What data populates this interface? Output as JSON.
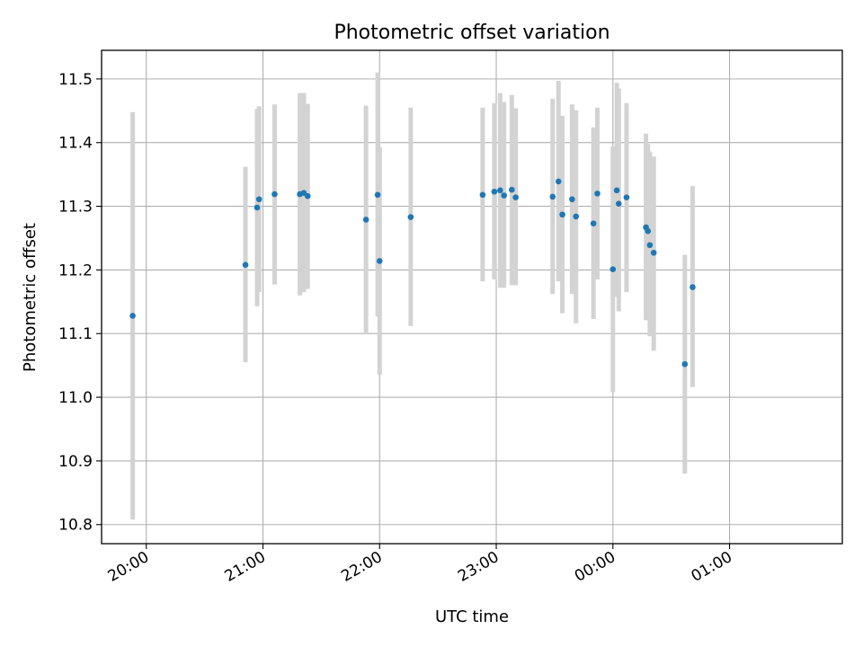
{
  "chart_data": {
    "type": "scatter",
    "title": "Photometric offset variation",
    "xlabel": "UTC time",
    "ylabel": "Photometric offset",
    "x_unit": "UTC time (HH:MM)",
    "xlim": [
      "19:37",
      "01:58"
    ],
    "ylim": [
      10.77,
      11.545
    ],
    "grid": true,
    "x_tick_labels": [
      "20:00",
      "21:00",
      "22:00",
      "23:00",
      "00:00",
      "01:00"
    ],
    "y_tick_labels": [
      "10.8",
      "10.9",
      "11.0",
      "11.1",
      "11.2",
      "11.3",
      "11.4",
      "11.5"
    ],
    "y_ticks": [
      10.8,
      10.9,
      11.0,
      11.1,
      11.2,
      11.3,
      11.4,
      11.5
    ],
    "colors": {
      "marker": "#1f77b4",
      "errorbar": "#d3d3d3",
      "grid": "#b0b0b0"
    },
    "points": [
      {
        "x": "19:53",
        "y": 11.128,
        "ylow": 10.808,
        "yhigh": 11.448
      },
      {
        "x": "20:51",
        "y": 11.208,
        "ylow": 11.055,
        "yhigh": 11.362
      },
      {
        "x": "20:57",
        "y": 11.298,
        "ylow": 11.143,
        "yhigh": 11.453
      },
      {
        "x": "20:58",
        "y": 11.311,
        "ylow": 11.165,
        "yhigh": 11.457
      },
      {
        "x": "21:06",
        "y": 11.319,
        "ylow": 11.177,
        "yhigh": 11.46
      },
      {
        "x": "21:19",
        "y": 11.319,
        "ylow": 11.16,
        "yhigh": 11.478
      },
      {
        "x": "21:21",
        "y": 11.321,
        "ylow": 11.165,
        "yhigh": 11.478
      },
      {
        "x": "21:23",
        "y": 11.316,
        "ylow": 11.17,
        "yhigh": 11.461
      },
      {
        "x": "21:53",
        "y": 11.279,
        "ylow": 11.1,
        "yhigh": 11.458
      },
      {
        "x": "21:59",
        "y": 11.318,
        "ylow": 11.127,
        "yhigh": 11.51
      },
      {
        "x": "22:00",
        "y": 11.214,
        "ylow": 11.035,
        "yhigh": 11.393
      },
      {
        "x": "22:16",
        "y": 11.283,
        "ylow": 11.112,
        "yhigh": 11.455
      },
      {
        "x": "22:53",
        "y": 11.318,
        "ylow": 11.182,
        "yhigh": 11.455
      },
      {
        "x": "22:59",
        "y": 11.323,
        "ylow": 11.185,
        "yhigh": 11.462
      },
      {
        "x": "23:02",
        "y": 11.325,
        "ylow": 11.172,
        "yhigh": 11.478
      },
      {
        "x": "23:04",
        "y": 11.317,
        "ylow": 11.172,
        "yhigh": 11.464
      },
      {
        "x": "23:08",
        "y": 11.326,
        "ylow": 11.176,
        "yhigh": 11.475
      },
      {
        "x": "23:10",
        "y": 11.314,
        "ylow": 11.176,
        "yhigh": 11.454
      },
      {
        "x": "23:29",
        "y": 11.315,
        "ylow": 11.162,
        "yhigh": 11.469
      },
      {
        "x": "23:32",
        "y": 11.339,
        "ylow": 11.182,
        "yhigh": 11.497
      },
      {
        "x": "23:34",
        "y": 11.287,
        "ylow": 11.132,
        "yhigh": 11.442
      },
      {
        "x": "23:39",
        "y": 11.311,
        "ylow": 11.162,
        "yhigh": 11.46
      },
      {
        "x": "23:41",
        "y": 11.284,
        "ylow": 11.116,
        "yhigh": 11.451
      },
      {
        "x": "23:50",
        "y": 11.273,
        "ylow": 11.123,
        "yhigh": 11.424
      },
      {
        "x": "23:52",
        "y": 11.32,
        "ylow": 11.185,
        "yhigh": 11.455
      },
      {
        "x": "00:00",
        "y": 11.201,
        "ylow": 11.008,
        "yhigh": 11.394
      },
      {
        "x": "00:02",
        "y": 11.325,
        "ylow": 11.158,
        "yhigh": 11.494
      },
      {
        "x": "00:03",
        "y": 11.304,
        "ylow": 11.135,
        "yhigh": 11.485
      },
      {
        "x": "00:07",
        "y": 11.314,
        "ylow": 11.165,
        "yhigh": 11.462
      },
      {
        "x": "00:17",
        "y": 11.267,
        "ylow": 11.121,
        "yhigh": 11.414
      },
      {
        "x": "00:18",
        "y": 11.261,
        "ylow": 11.127,
        "yhigh": 11.398
      },
      {
        "x": "00:19",
        "y": 11.239,
        "ylow": 11.096,
        "yhigh": 11.386
      },
      {
        "x": "00:21",
        "y": 11.227,
        "ylow": 11.073,
        "yhigh": 11.378
      },
      {
        "x": "00:37",
        "y": 11.052,
        "ylow": 10.88,
        "yhigh": 11.224
      },
      {
        "x": "00:41",
        "y": 11.173,
        "ylow": 11.016,
        "yhigh": 11.332
      }
    ]
  }
}
